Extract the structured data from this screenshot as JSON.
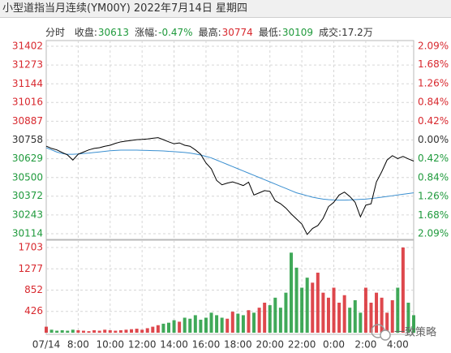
{
  "header": {
    "title": "小型道指当月连续(YM00Y) 2022年7月14日 星期四"
  },
  "stats": {
    "mode": "分时",
    "items": [
      {
        "label": "收盘:",
        "value": "30613",
        "tone": "down"
      },
      {
        "label": "涨幅:",
        "value": "-0.47%",
        "tone": "down"
      },
      {
        "label": "最高:",
        "value": "30774",
        "tone": "up"
      },
      {
        "label": "最低:",
        "value": "30109",
        "tone": "down"
      },
      {
        "label": "成交:17.2万",
        "value": null,
        "tone": "neutral"
      }
    ]
  },
  "watermark": "一致策略",
  "chart_data": [
    {
      "type": "line",
      "x": [
        0,
        20,
        40,
        60,
        80,
        100,
        120,
        140,
        160,
        180,
        200,
        220,
        240,
        260,
        280,
        300,
        320,
        340,
        360,
        380,
        400,
        420,
        440,
        460,
        480,
        500,
        520,
        540,
        560,
        580,
        600,
        620,
        640,
        660,
        680,
        700,
        720,
        740,
        760,
        780,
        800,
        820,
        840,
        860,
        880,
        900,
        920,
        940,
        960,
        980,
        1000,
        1020,
        1040,
        1060,
        1080,
        1100,
        1120,
        1140,
        1160,
        1180,
        1200,
        1220,
        1240,
        1260,
        1280,
        1300,
        1320,
        1340,
        1360,
        1380
      ],
      "series": [
        {
          "color": "#000000",
          "values": [
            30716,
            30700,
            30690,
            30672,
            30655,
            30620,
            30660,
            30675,
            30690,
            30700,
            30705,
            30715,
            30722,
            30735,
            30745,
            30750,
            30755,
            30760,
            30762,
            30765,
            30770,
            30774,
            30760,
            30745,
            30732,
            30738,
            30722,
            30715,
            30690,
            30660,
            30600,
            30560,
            30480,
            30450,
            30462,
            30470,
            30458,
            30445,
            30468,
            30380,
            30395,
            30410,
            30405,
            30340,
            30320,
            30290,
            30250,
            30215,
            30180,
            30109,
            30150,
            30170,
            30220,
            30300,
            30330,
            30380,
            30400,
            30370,
            30330,
            30230,
            30310,
            30320,
            30470,
            30540,
            30620,
            30650,
            30630,
            30645,
            30628,
            30613
          ]
        },
        {
          "color": "#3a8fd0",
          "values": [
            30705,
            30690,
            30675,
            30665,
            30660,
            30660,
            30662,
            30665,
            30668,
            30672,
            30676,
            30680,
            30684,
            30686,
            30688,
            30688,
            30688,
            30688,
            30687,
            30686,
            30685,
            30684,
            30683,
            30680,
            30678,
            30675,
            30672,
            30668,
            30662,
            30655,
            30645,
            30635,
            30620,
            30605,
            30590,
            30575,
            30560,
            30545,
            30530,
            30515,
            30500,
            30485,
            30470,
            30455,
            30440,
            30425,
            30410,
            30395,
            30385,
            30375,
            30365,
            30358,
            30352,
            30348,
            30346,
            30345,
            30345,
            30346,
            30348,
            30350,
            30352,
            30356,
            30360,
            30365,
            30370,
            30375,
            30380,
            30385,
            30390,
            30395
          ]
        }
      ],
      "xlim": [
        0,
        1380
      ],
      "ylim": [
        30114,
        31402
      ],
      "yticks": [
        30114,
        30243,
        30372,
        30500,
        30629,
        30758,
        30887,
        31016,
        31144,
        31273,
        31402
      ],
      "y2lim": [
        -2.09,
        2.09
      ],
      "y2ticks": [
        {
          "value": -2.09,
          "label": "2.09%"
        },
        {
          "value": -1.68,
          "label": "1.68%"
        },
        {
          "value": -1.26,
          "label": "1.26%"
        },
        {
          "value": -0.84,
          "label": "0.84%"
        },
        {
          "value": -0.42,
          "label": "0.42%"
        },
        {
          "value": 0,
          "label": "0.00%"
        },
        {
          "value": 0.42,
          "label": "0.42%"
        },
        {
          "value": 0.84,
          "label": "0.84%"
        },
        {
          "value": 1.26,
          "label": "1.26%"
        },
        {
          "value": 1.68,
          "label": "1.68%"
        },
        {
          "value": 2.09,
          "label": "2.09%"
        }
      ],
      "up_color": "#d8282e",
      "down_color": "#1f9a3c",
      "flat_color": "#333333",
      "grid": true
    },
    {
      "type": "bar",
      "x": [
        0,
        20,
        40,
        60,
        80,
        100,
        120,
        140,
        160,
        180,
        200,
        220,
        240,
        260,
        280,
        300,
        320,
        340,
        360,
        380,
        400,
        420,
        440,
        460,
        480,
        500,
        520,
        540,
        560,
        580,
        600,
        620,
        640,
        660,
        680,
        700,
        720,
        740,
        760,
        780,
        800,
        820,
        840,
        860,
        880,
        900,
        920,
        940,
        960,
        980,
        1000,
        1020,
        1040,
        1060,
        1080,
        1100,
        1120,
        1140,
        1160,
        1180,
        1200,
        1220,
        1240,
        1260,
        1280,
        1300,
        1320,
        1340,
        1360,
        1380
      ],
      "values": [
        120,
        60,
        40,
        50,
        40,
        60,
        50,
        40,
        30,
        50,
        40,
        60,
        50,
        40,
        50,
        60,
        70,
        80,
        60,
        90,
        120,
        150,
        180,
        200,
        250,
        220,
        300,
        280,
        350,
        260,
        300,
        400,
        350,
        300,
        280,
        420,
        380,
        350,
        450,
        400,
        500,
        600,
        550,
        700,
        500,
        800,
        1600,
        1300,
        900,
        1100,
        1000,
        1200,
        800,
        700,
        900,
        600,
        750,
        500,
        650,
        400,
        900,
        600,
        800,
        700,
        400,
        650,
        900,
        1703,
        600,
        350
      ],
      "xlim": [
        0,
        1380
      ],
      "xticks": [
        {
          "value": 0,
          "label": "07/14"
        },
        {
          "value": 120,
          "label": "8:00"
        },
        {
          "value": 240,
          "label": "10:00"
        },
        {
          "value": 360,
          "label": "12:00"
        },
        {
          "value": 480,
          "label": "14:00"
        },
        {
          "value": 600,
          "label": "16:00"
        },
        {
          "value": 720,
          "label": "18:00"
        },
        {
          "value": 840,
          "label": "20:00"
        },
        {
          "value": 960,
          "label": "22:00"
        },
        {
          "value": 1080,
          "label": "0:00"
        },
        {
          "value": 1200,
          "label": "2:00"
        },
        {
          "value": 1320,
          "label": "4:00"
        }
      ],
      "ylim": [
        0,
        1703
      ],
      "yticks": [
        426,
        852,
        1277,
        1703
      ],
      "up_color": "#d8282e",
      "down_color": "#1f9a3c",
      "grid": true
    }
  ]
}
